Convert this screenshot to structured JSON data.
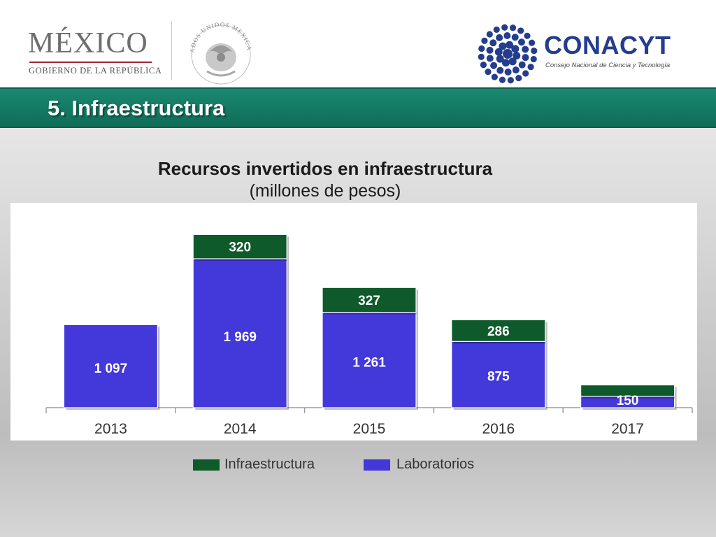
{
  "header": {
    "mexico_logo": {
      "word": "MÉXICO",
      "subtitle": "GOBIERNO DE LA REPÚBLICA",
      "accent_color": "#9b2335"
    },
    "seal_icon": "escudo-nacional-icon",
    "seal_text": "ESTADOS UNIDOS MEXICANOS",
    "conacyt_logo": {
      "name": "CONACYT",
      "subtitle": "Consejo Nacional de Ciencia y Tecnología",
      "color": "#243d8f"
    }
  },
  "slide": {
    "title": "5. Infraestructura",
    "band_color": "#137a63"
  },
  "chart_data": {
    "type": "bar",
    "stacked": true,
    "title": "Recursos invertidos en infraestructura",
    "subtitle": "(millones de pesos)",
    "categories": [
      "2013",
      "2014",
      "2015",
      "2016",
      "2017"
    ],
    "series": [
      {
        "name": "Laboratorios",
        "color": "#4338d9",
        "values": [
          1097,
          1969,
          1261,
          875,
          150
        ],
        "labels": [
          "1 097",
          "1 969",
          "1 261",
          "875",
          "150"
        ]
      },
      {
        "name": "Infraestructura",
        "color": "#0f5a2a",
        "values": [
          0,
          320,
          327,
          286,
          150
        ],
        "labels": [
          "",
          "320",
          "327",
          "286",
          ""
        ]
      }
    ],
    "legend": {
      "position": "bottom",
      "entries": [
        {
          "name": "Infraestructura",
          "color": "#0f5a2a"
        },
        {
          "name": "Laboratorios",
          "color": "#4338d9"
        }
      ]
    },
    "grid": false
  }
}
